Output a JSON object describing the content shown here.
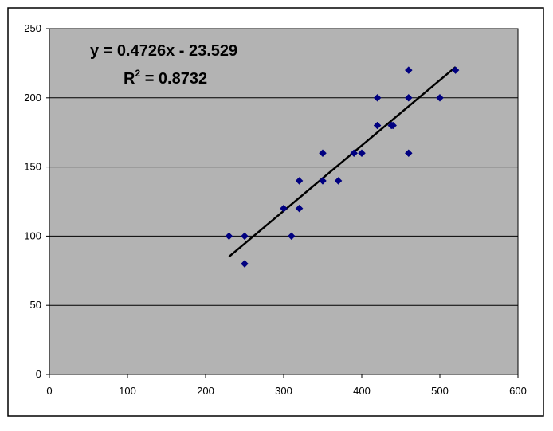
{
  "colors": {
    "plot_background": "#b3b3b3",
    "frame_border": "#000000",
    "gridline": "#000000",
    "marker": "#000080",
    "trendline": "#000000"
  },
  "chart_data": {
    "type": "scatter",
    "title": "",
    "xlabel": "",
    "ylabel": "",
    "xlim": [
      0,
      600
    ],
    "ylim": [
      0,
      250
    ],
    "x_ticks": [
      0,
      100,
      200,
      300,
      400,
      500,
      600
    ],
    "y_ticks": [
      0,
      50,
      100,
      150,
      200,
      250
    ],
    "x_tick_labels": [
      "0",
      "100",
      "200",
      "300",
      "400",
      "500",
      "600"
    ],
    "y_tick_labels": [
      "0",
      "50",
      "100",
      "150",
      "200",
      "250"
    ],
    "grid": "horizontal major gridlines",
    "legend": "none",
    "series": [
      {
        "marker": "diamond",
        "points": [
          [
            230,
            100
          ],
          [
            250,
            100
          ],
          [
            250,
            80
          ],
          [
            300,
            120
          ],
          [
            310,
            100
          ],
          [
            320,
            140
          ],
          [
            320,
            120
          ],
          [
            350,
            160
          ],
          [
            350,
            140
          ],
          [
            370,
            140
          ],
          [
            390,
            160
          ],
          [
            400,
            160
          ],
          [
            420,
            200
          ],
          [
            420,
            180
          ],
          [
            438,
            180
          ],
          [
            440,
            180
          ],
          [
            460,
            220
          ],
          [
            460,
            200
          ],
          [
            460,
            160
          ],
          [
            500,
            200
          ],
          [
            520,
            220
          ]
        ]
      }
    ],
    "trendline": {
      "type": "linear",
      "slope": 0.4726,
      "intercept": -23.529,
      "x_range": [
        230,
        520
      ],
      "equation_label": "y = 0.4726x - 23.529",
      "r2_prefix": "R",
      "r2_superscript": "2",
      "r2_value_text": " = 0.8732"
    }
  }
}
